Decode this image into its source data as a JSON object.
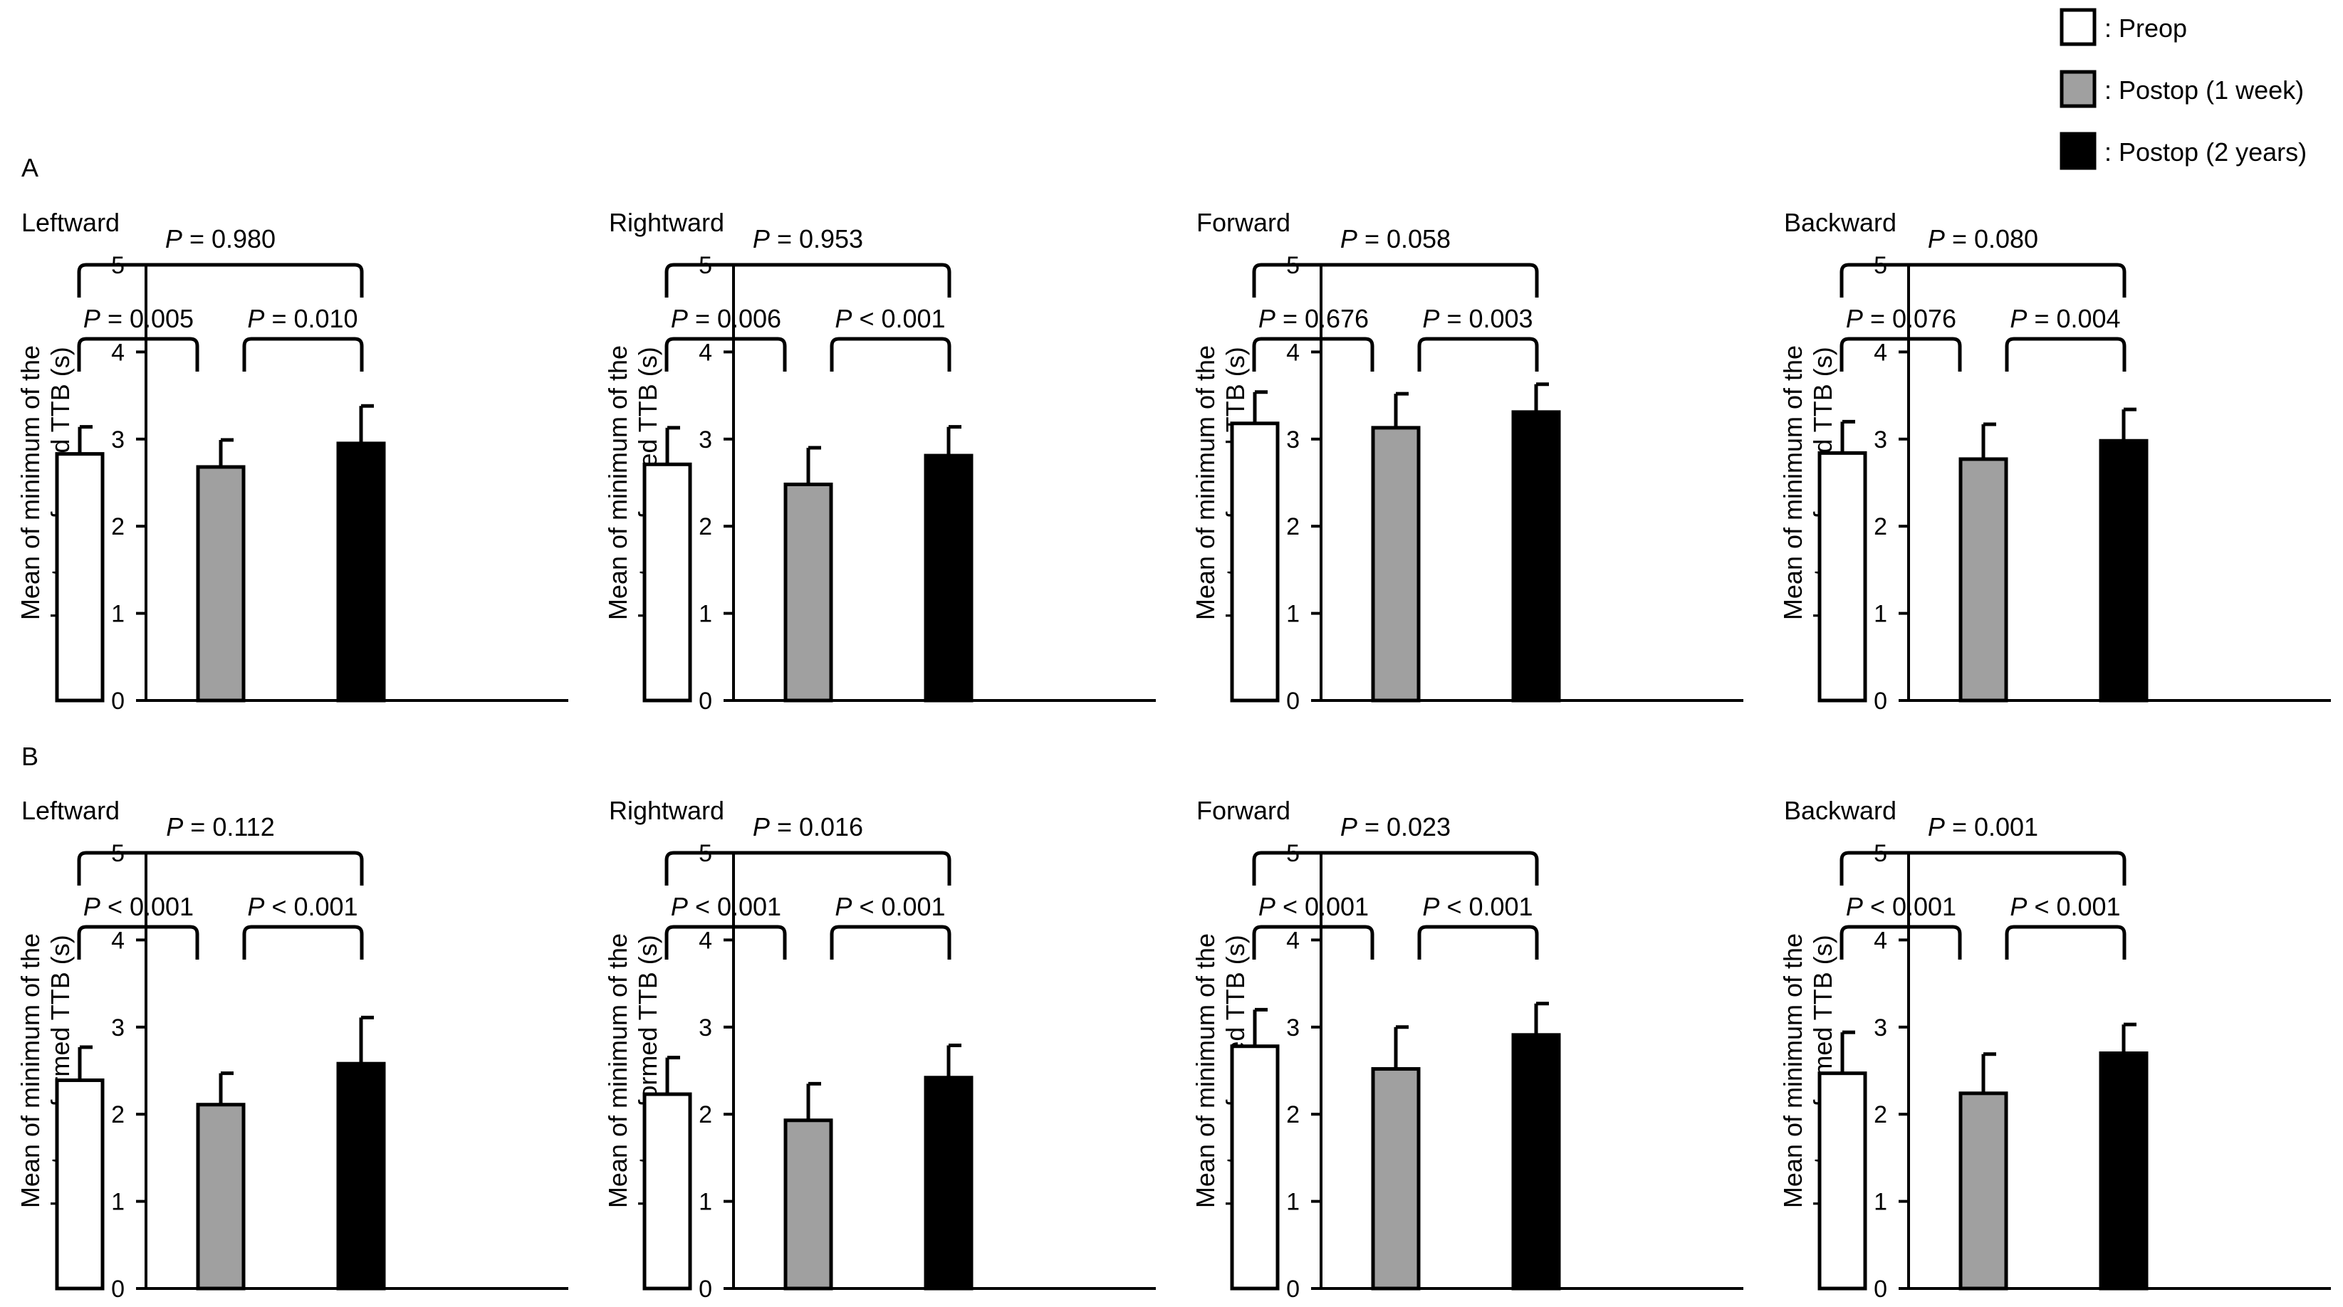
{
  "legend": [
    {
      "label": ": Preop",
      "color": "#ffffff"
    },
    {
      "label": ": Postop (1 week)",
      "color": "#a0a0a0"
    },
    {
      "label": ": Postop (2 years)",
      "color": "#000000"
    }
  ],
  "rows": [
    {
      "label": "A"
    },
    {
      "label": "B"
    }
  ],
  "chart_data": [
    {
      "type": "bar",
      "panel": "A",
      "title": "Leftward",
      "ylabel": [
        "Mean of minimum of the",
        "log-transformed TTB (s)"
      ],
      "ylim": [
        0,
        5
      ],
      "yticks": [
        "0",
        "1",
        "2",
        "3",
        "4",
        "5"
      ],
      "categories": [
        "Preop",
        "Postop (1 week)",
        "Postop (2 years)"
      ],
      "values": [
        2.83,
        2.68,
        2.95
      ],
      "errors": [
        0.31,
        0.31,
        0.43
      ],
      "pvalues": {
        "left": "0.005",
        "right": "0.010",
        "top": "0.980"
      }
    },
    {
      "type": "bar",
      "panel": "A",
      "title": "Rightward",
      "ylabel": [
        "Mean of minimum of the",
        "log-transformed TTB (s)"
      ],
      "ylim": [
        0,
        5
      ],
      "yticks": [
        "0",
        "1",
        "2",
        "3",
        "4",
        "5"
      ],
      "categories": [
        "Preop",
        "Postop (1 week)",
        "Postop (2 years)"
      ],
      "values": [
        2.71,
        2.48,
        2.81
      ],
      "errors": [
        0.42,
        0.42,
        0.33
      ],
      "pvalues": {
        "left": "0.006",
        "right": "< 0.001",
        "top": "0.953"
      }
    },
    {
      "type": "bar",
      "panel": "A",
      "title": "Forward",
      "ylabel": [
        "Mean of minimum of the",
        "log-transformed TTB (s)"
      ],
      "ylim": [
        0,
        5
      ],
      "yticks": [
        "0",
        "1",
        "2",
        "3",
        "4",
        "5"
      ],
      "categories": [
        "Preop",
        "Postop (1 week)",
        "Postop (2 years)"
      ],
      "values": [
        3.18,
        3.13,
        3.31
      ],
      "errors": [
        0.36,
        0.39,
        0.32
      ],
      "pvalues": {
        "left": "0.676",
        "right": "0.003",
        "top": "0.058"
      }
    },
    {
      "type": "bar",
      "panel": "A",
      "title": "Backward",
      "ylabel": [
        "Mean of minimum of the",
        "log-transformed TTB (s)"
      ],
      "ylim": [
        0,
        5
      ],
      "yticks": [
        "0",
        "1",
        "2",
        "3",
        "4",
        "5"
      ],
      "categories": [
        "Preop",
        "Postop (1 week)",
        "Postop (2 years)"
      ],
      "values": [
        2.84,
        2.77,
        2.98
      ],
      "errors": [
        0.36,
        0.4,
        0.36
      ],
      "pvalues": {
        "left": "0.076",
        "right": "0.004",
        "top": "0.080"
      }
    },
    {
      "type": "bar",
      "panel": "B",
      "title": "Leftward",
      "ylabel": [
        "Mean of minimum of the",
        "log-transformed TTB (s)"
      ],
      "ylim": [
        0,
        5
      ],
      "yticks": [
        "0",
        "1",
        "2",
        "3",
        "4",
        "5"
      ],
      "categories": [
        "Preop",
        "Postop (1 week)",
        "Postop (2 years)"
      ],
      "values": [
        2.39,
        2.11,
        2.58
      ],
      "errors": [
        0.38,
        0.36,
        0.53
      ],
      "pvalues": {
        "left": "< 0.001",
        "right": "< 0.001",
        "top": "0.112"
      }
    },
    {
      "type": "bar",
      "panel": "B",
      "title": "Rightward",
      "ylabel": [
        "Mean of minimum of the",
        "log-transformed TTB (s)"
      ],
      "ylim": [
        0,
        5
      ],
      "yticks": [
        "0",
        "1",
        "2",
        "3",
        "4",
        "5"
      ],
      "categories": [
        "Preop",
        "Postop (1 week)",
        "Postop (2 years)"
      ],
      "values": [
        2.23,
        1.93,
        2.42
      ],
      "errors": [
        0.42,
        0.42,
        0.37
      ],
      "pvalues": {
        "left": "< 0.001",
        "right": "< 0.001",
        "top": "0.016"
      }
    },
    {
      "type": "bar",
      "panel": "B",
      "title": "Forward",
      "ylabel": [
        "Mean of minimum of the",
        "log-transformed TTB (s)"
      ],
      "ylim": [
        0,
        5
      ],
      "yticks": [
        "0",
        "1",
        "2",
        "3",
        "4",
        "5"
      ],
      "categories": [
        "Preop",
        "Postop (1 week)",
        "Postop (2 years)"
      ],
      "values": [
        2.78,
        2.52,
        2.91
      ],
      "errors": [
        0.42,
        0.48,
        0.36
      ],
      "pvalues": {
        "left": "< 0.001",
        "right": "< 0.001",
        "top": "0.023"
      }
    },
    {
      "type": "bar",
      "panel": "B",
      "title": "Backward",
      "ylabel": [
        "Mean of minimum of the",
        "log-transformed TTB (s)"
      ],
      "ylim": [
        0,
        5
      ],
      "yticks": [
        "0",
        "1",
        "2",
        "3",
        "4",
        "5"
      ],
      "categories": [
        "Preop",
        "Postop (1 week)",
        "Postop (2 years)"
      ],
      "values": [
        2.47,
        2.24,
        2.7
      ],
      "errors": [
        0.47,
        0.45,
        0.33
      ],
      "pvalues": {
        "left": "< 0.001",
        "right": "< 0.001",
        "top": "0.001"
      }
    }
  ]
}
